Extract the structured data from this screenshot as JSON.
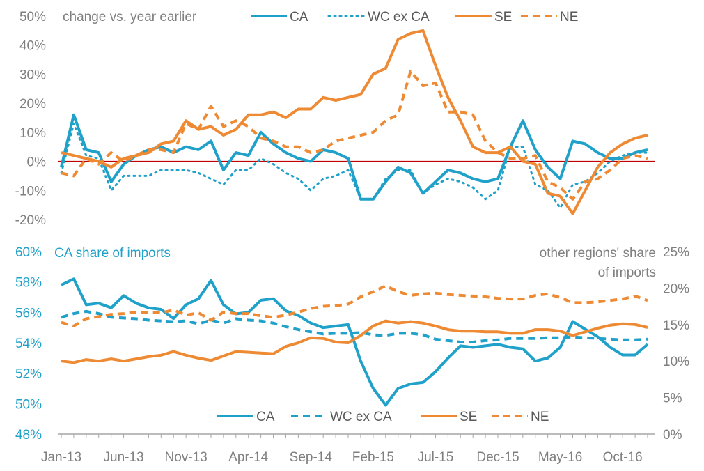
{
  "colors": {
    "ca": "#1fa1c9",
    "se": "#ee8a33",
    "zero_line": "#c00000",
    "axis": "#a6a6a6",
    "text": "#7f7f7f"
  },
  "x_tick_labels": [
    "Jan-13",
    "Jun-13",
    "Nov-13",
    "Apr-14",
    "Sep-14",
    "Feb-15",
    "Jul-15",
    "Dec-15",
    "May-16",
    "Oct-16"
  ],
  "chart_data": [
    {
      "type": "line",
      "title": "change vs. year earlier",
      "ylim": [
        -20,
        50
      ],
      "y_tick_labels": [
        "-20%",
        "-10%",
        "0%",
        "10%",
        "20%",
        "30%",
        "40%",
        "50%"
      ],
      "y_ticks": [
        -20,
        -10,
        0,
        10,
        20,
        30,
        40,
        50
      ],
      "x_start": "Jan-13",
      "legend": [
        "CA",
        "WC ex CA",
        "SE",
        "NE"
      ],
      "series": [
        {
          "name": "CA",
          "style": "solid",
          "color": "#1fa1c9",
          "values": [
            -2,
            16,
            4,
            3,
            -7,
            -1,
            2,
            4,
            5,
            3,
            5,
            4,
            7,
            -3,
            3,
            2,
            10,
            6,
            3,
            1,
            0,
            4,
            3,
            1,
            -13,
            -13,
            -7,
            -2,
            -4,
            -11,
            -7,
            -3,
            -4,
            -6,
            -7,
            -6,
            5,
            14,
            4,
            -2,
            -6,
            7,
            6,
            3,
            1,
            1,
            3,
            4
          ]
        },
        {
          "name": "WC ex CA",
          "style": "dotted",
          "color": "#1fa1c9",
          "values": [
            -4,
            13,
            2,
            1,
            -10,
            -5,
            -5,
            -5,
            -3,
            -3,
            -3,
            -4,
            -6,
            -8,
            -3,
            -3,
            1,
            -1,
            -4,
            -6,
            -10,
            -6,
            -5,
            -3,
            -13,
            -13,
            -6,
            -3,
            -3,
            -11,
            -8,
            -6,
            -7,
            -9,
            -13,
            -10,
            5,
            5,
            -8,
            -10,
            -16,
            -8,
            -7,
            -4,
            0,
            2,
            3,
            3
          ]
        },
        {
          "name": "SE",
          "style": "solid",
          "color": "#ee8a33",
          "values": [
            3,
            2,
            1,
            0,
            -2,
            1,
            2,
            3,
            6,
            7,
            14,
            11,
            12,
            9,
            11,
            16,
            16,
            17,
            15,
            18,
            18,
            22,
            21,
            22,
            23,
            30,
            32,
            42,
            44,
            45,
            33,
            22,
            14,
            5,
            3,
            3,
            5,
            0,
            -1,
            -11,
            -12,
            -18,
            -10,
            -2,
            3,
            6,
            8,
            9
          ]
        },
        {
          "name": "NE",
          "style": "dashed",
          "color": "#ee8a33",
          "values": [
            -4,
            -5,
            1,
            -1,
            3,
            0,
            2,
            4,
            4,
            3,
            13,
            11,
            19,
            12,
            14,
            12,
            8,
            7,
            5,
            5,
            3,
            4,
            7,
            8,
            9,
            10,
            14,
            16,
            31,
            26,
            27,
            17,
            17,
            16,
            7,
            3,
            1,
            1,
            2,
            -7,
            -9,
            -13,
            -7,
            -6,
            -3,
            1,
            2,
            1
          ]
        }
      ]
    },
    {
      "type": "line",
      "title": "CA share of imports",
      "right_title_line1": "other regions' share",
      "right_title_line2": "of imports",
      "ylim_left": [
        48,
        60
      ],
      "ylim_right": [
        0,
        25
      ],
      "y_tick_labels_left": [
        "48%",
        "50%",
        "52%",
        "54%",
        "56%",
        "58%",
        "60%"
      ],
      "y_ticks_left": [
        48,
        50,
        52,
        54,
        56,
        58,
        60
      ],
      "y_tick_labels_right": [
        "0%",
        "5%",
        "10%",
        "15%",
        "20%",
        "25%"
      ],
      "y_ticks_right": [
        0,
        5,
        10,
        15,
        20,
        25
      ],
      "legend": [
        "CA",
        "WC ex CA",
        "SE",
        "NE"
      ],
      "series": [
        {
          "name": "CA",
          "axis": "left",
          "style": "solid",
          "color": "#1fa1c9",
          "values": [
            57.8,
            58.2,
            56.5,
            56.6,
            56.3,
            57.1,
            56.6,
            56.3,
            56.2,
            55.6,
            56.5,
            56.9,
            58.1,
            56.5,
            55.9,
            56.0,
            56.8,
            56.9,
            56.1,
            55.8,
            55.3,
            55.0,
            55.1,
            55.2,
            52.8,
            51.0,
            49.9,
            51.0,
            51.3,
            51.4,
            52.1,
            53.0,
            53.8,
            53.7,
            53.8,
            53.9,
            53.7,
            53.6,
            52.8,
            53.0,
            53.7,
            55.4,
            54.9,
            54.4,
            53.7,
            53.2,
            53.2,
            53.9
          ]
        },
        {
          "name": "WC ex CA",
          "axis": "right",
          "style": "dashed",
          "color": "#1fa1c9",
          "values": [
            16,
            16.5,
            16.8,
            16.5,
            16,
            15.9,
            15.8,
            15.6,
            15.5,
            15.4,
            15.5,
            15.1,
            15.6,
            15.2,
            15.8,
            15.6,
            15.5,
            15.2,
            14.7,
            14.3,
            14,
            13.7,
            13.8,
            13.8,
            13.9,
            13.6,
            13.5,
            13.8,
            13.8,
            13.6,
            13,
            12.8,
            12.6,
            12.6,
            12.8,
            12.9,
            13.1,
            13.1,
            13.1,
            13.2,
            13.2,
            13.3,
            13.2,
            13.1,
            13,
            12.9,
            12.9,
            13.0
          ]
        },
        {
          "name": "SE",
          "axis": "right",
          "style": "solid",
          "color": "#ee8a33",
          "values": [
            10,
            9.8,
            10.2,
            10,
            10.3,
            10,
            10.3,
            10.6,
            10.8,
            11.3,
            10.8,
            10.4,
            10.1,
            10.7,
            11.3,
            11.2,
            11.1,
            11.0,
            12.0,
            12.5,
            13.2,
            13.1,
            12.6,
            12.5,
            13.5,
            14.8,
            15.5,
            15.2,
            15.4,
            15.2,
            14.8,
            14.3,
            14.1,
            14.1,
            14.0,
            14.0,
            13.8,
            13.8,
            14.3,
            14.3,
            14.1,
            13.5,
            14.0,
            14.5,
            14.9,
            15.1,
            15.0,
            14.6
          ]
        },
        {
          "name": "NE",
          "axis": "right",
          "style": "dashed",
          "color": "#ee8a33",
          "values": [
            15.3,
            14.8,
            15.8,
            16.1,
            16.4,
            16.5,
            16.7,
            16.6,
            16.6,
            17.0,
            16.3,
            16.6,
            15.6,
            16.7,
            16.5,
            16.5,
            16.2,
            16.0,
            16.3,
            16.7,
            17.2,
            17.5,
            17.6,
            17.8,
            18.8,
            19.5,
            20.3,
            19.5,
            19.0,
            19.2,
            19.3,
            19.1,
            19.0,
            18.9,
            18.8,
            18.6,
            18.5,
            18.5,
            19.0,
            19.2,
            18.7,
            18.0,
            18.0,
            18.1,
            18.3,
            18.5,
            18.9,
            18.3
          ]
        }
      ]
    }
  ]
}
